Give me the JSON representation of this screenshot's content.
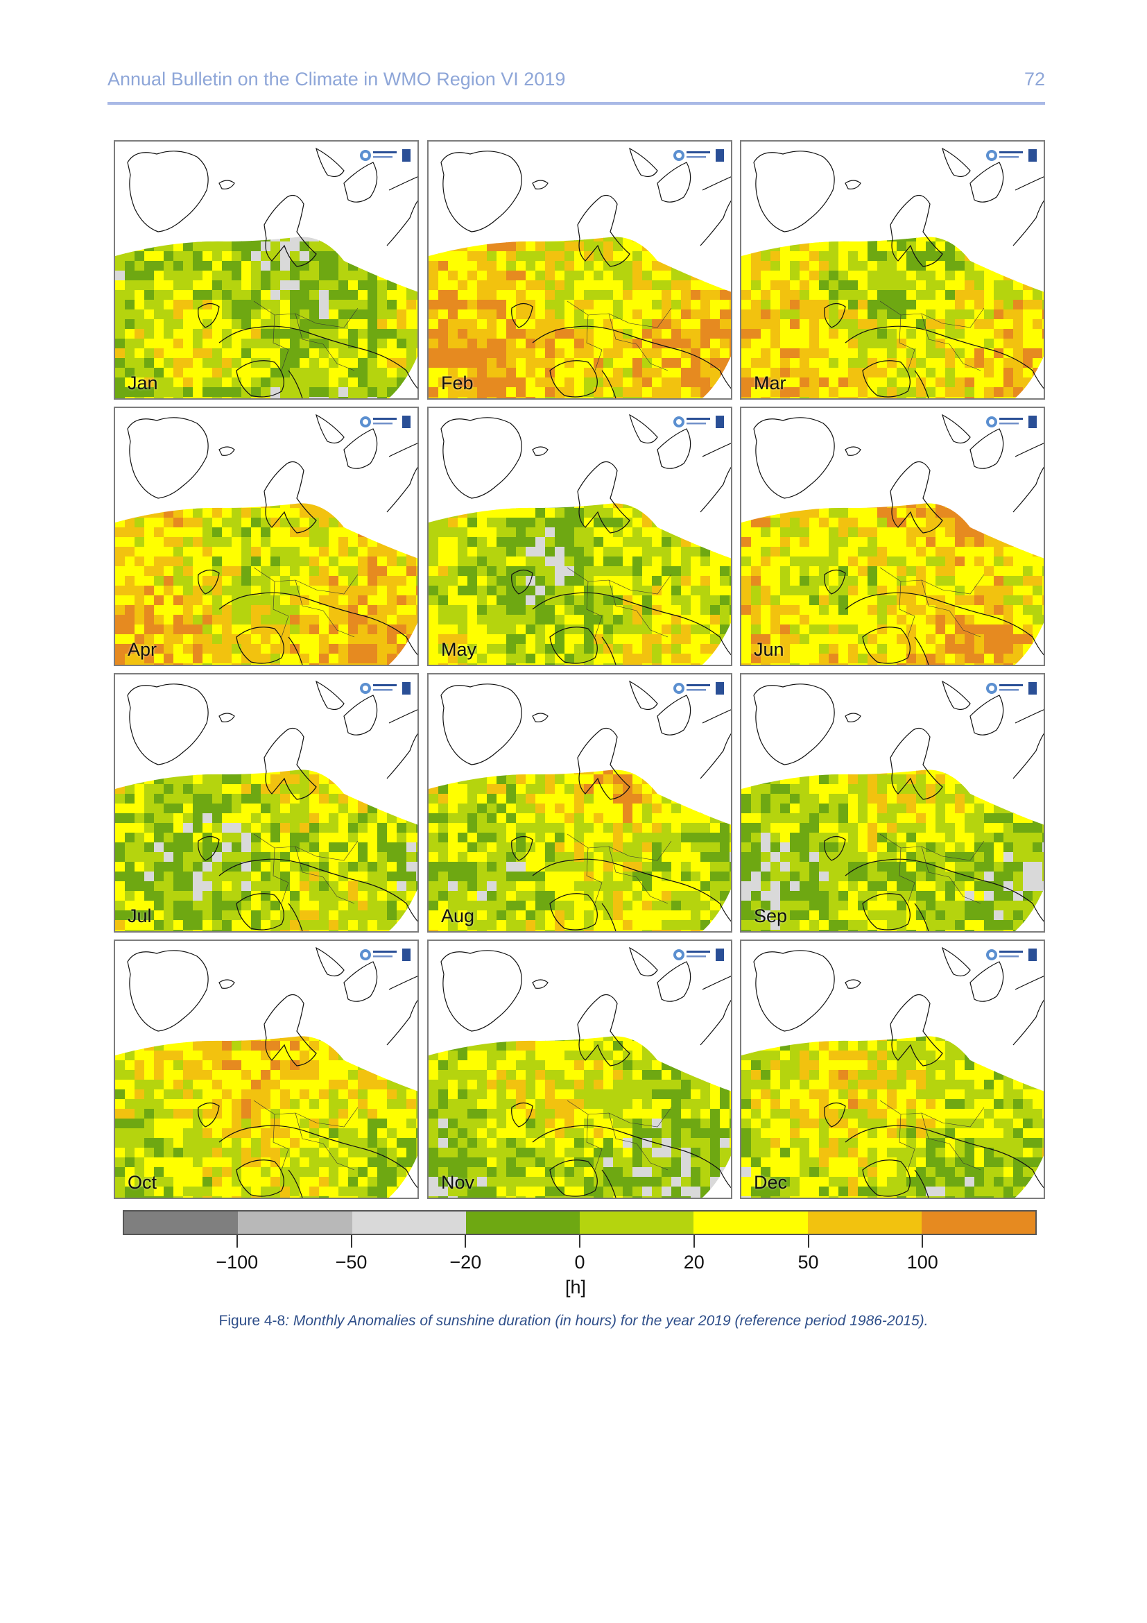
{
  "header": {
    "title": "Annual Bulletin on the Climate in WMO Region VI 2019",
    "page_number": "72"
  },
  "figure": {
    "panels": [
      {
        "month": "Jan"
      },
      {
        "month": "Feb"
      },
      {
        "month": "Mar"
      },
      {
        "month": "Apr"
      },
      {
        "month": "May"
      },
      {
        "month": "Jun"
      },
      {
        "month": "Jul"
      },
      {
        "month": "Aug"
      },
      {
        "month": "Sep"
      },
      {
        "month": "Oct"
      },
      {
        "month": "Nov"
      },
      {
        "month": "Dec"
      }
    ],
    "legend": {
      "tick_labels": [
        "−100",
        "−50",
        "−20",
        "0",
        "20",
        "50",
        "100"
      ],
      "unit": "[h]",
      "colors": [
        "#7f7f7f",
        "#b8b8b8",
        "#d9d9d9",
        "#6ea812",
        "#b5d40e",
        "#ffff00",
        "#f2c20f",
        "#e68a20"
      ]
    }
  },
  "caption": {
    "label": "Figure 4-8",
    "text": ": Monthly Anomalies of sunshine duration (in hours) for the year 2019 (reference period 1986-2015)."
  }
}
